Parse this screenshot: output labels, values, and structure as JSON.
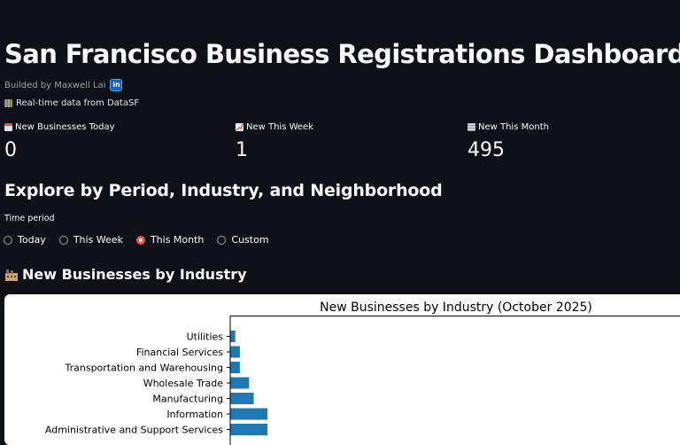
{
  "header": {
    "title": "San Francisco Business Registrations Dashboard",
    "byline": "Builded by Maxwell Lai",
    "linkedin_badge": "in",
    "realtime_note": "Real-time data from DataSF"
  },
  "metrics": [
    {
      "label": "New Businesses Today",
      "value": "0",
      "icon": "calendar-icon"
    },
    {
      "label": "New This Week",
      "value": "1",
      "icon": "chart-up-icon"
    },
    {
      "label": "New This Month",
      "value": "495",
      "icon": "newspaper-icon"
    }
  ],
  "explore": {
    "heading": "Explore by Period, Industry, and Neighborhood",
    "time_period_label": "Time period",
    "options": [
      "Today",
      "This Week",
      "This Month",
      "Custom"
    ],
    "selected": "This Month"
  },
  "industry_section": {
    "heading": "New Businesses by Industry",
    "icon": "factory-icon"
  },
  "colors": {
    "bar": "#1f77b4",
    "accent": "#ff4b4b",
    "background": "#0e1117"
  },
  "chart_data": {
    "type": "bar",
    "orientation": "horizontal",
    "title": "New Businesses by Industry (October 2025)",
    "categories": [
      "Utilities",
      "Financial Services",
      "Transportation and Warehousing",
      "Wholesale Trade",
      "Manufacturing",
      "Information",
      "Administrative and Support Services"
    ],
    "values": [
      2,
      4,
      4,
      8,
      10,
      16,
      16
    ],
    "xlim": [
      0,
      200
    ]
  }
}
